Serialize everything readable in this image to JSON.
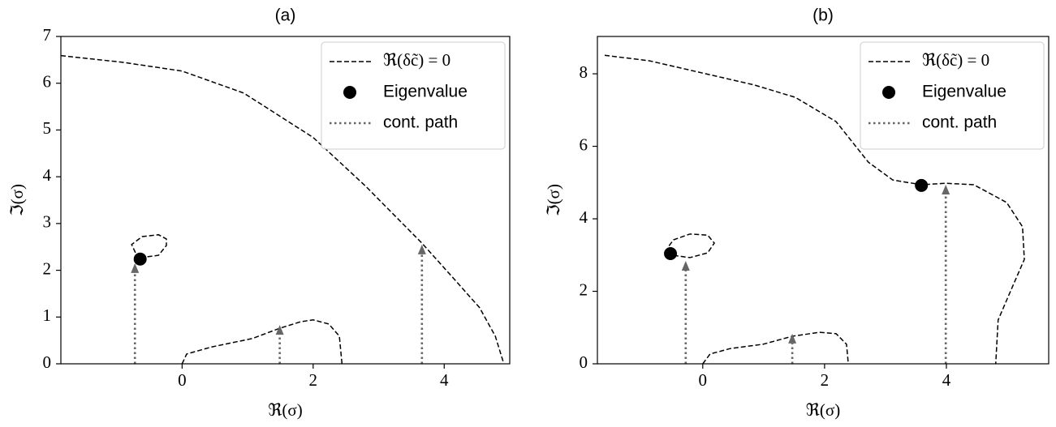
{
  "chart_data": [
    {
      "type": "line",
      "title": "(a)",
      "xlabel": "ℜ(σ)",
      "ylabel": "ℑ(σ)",
      "xlim": [
        -1.85,
        5.0
      ],
      "ylim": [
        0,
        7
      ],
      "xticks": [
        0,
        2,
        4
      ],
      "yticks": [
        0,
        1,
        2,
        3,
        4,
        5,
        6,
        7
      ],
      "legend": "upper right",
      "series": [
        {
          "name": "ℜ(δc̃) = 0",
          "color": "#000000",
          "mode": "lines",
          "dash": "dashed",
          "x": [
            -1.85,
            -0.92,
            0,
            0.94,
            2.0,
            2.8,
            3.66,
            4.16,
            4.54,
            4.78,
            4.91,
            null,
            -0.64,
            -0.36,
            -0.24,
            -0.24,
            -0.36,
            -0.61,
            -0.77,
            -0.71,
            -0.64,
            null,
            0,
            0.07,
            0.45,
            1.07,
            1.49,
            1.81,
            2.0,
            2.24,
            2.4,
            2.44
          ],
          "y": [
            6.59,
            6.45,
            6.26,
            5.79,
            4.84,
            3.8,
            2.58,
            1.8,
            1.2,
            0.59,
            0,
            null,
            2.27,
            2.32,
            2.53,
            2.67,
            2.76,
            2.72,
            2.55,
            2.37,
            2.27,
            null,
            0,
            0.21,
            0.36,
            0.54,
            0.76,
            0.9,
            0.94,
            0.85,
            0.59,
            0
          ]
        },
        {
          "name": "Eigenvalue",
          "color": "#000000",
          "mode": "markers",
          "x": [
            -0.64
          ],
          "y": [
            2.24
          ]
        },
        {
          "name": "cont. path",
          "color": "#666666",
          "mode": "arrows",
          "dash": "dotted",
          "x": [
            -0.72,
            -0.72,
            null,
            1.49,
            1.49,
            null,
            3.66,
            3.66
          ],
          "y": [
            0,
            2.15,
            null,
            0,
            0.83,
            null,
            0,
            2.55
          ]
        }
      ]
    },
    {
      "type": "line",
      "title": "(b)",
      "xlabel": "ℜ(σ)",
      "ylabel": "ℑ(σ)",
      "xlim": [
        -1.73,
        5.68
      ],
      "ylim": [
        0,
        9.03
      ],
      "xticks": [
        0,
        2,
        4
      ],
      "yticks": [
        0,
        2,
        4,
        6,
        8
      ],
      "legend": "upper right",
      "series": [
        {
          "name": "ℜ(δc̃) = 0",
          "color": "#000000",
          "mode": "lines",
          "dash": "dashed",
          "x": [
            -1.61,
            -0.88,
            0,
            0.85,
            1.52,
            2.19,
            2.72,
            3.12,
            3.59,
            3.99,
            4.45,
            4.99,
            5.25,
            5.28,
            5.05,
            4.85,
            4.81,
            null,
            -0.48,
            -0.21,
            0.08,
            0.19,
            0.08,
            -0.21,
            -0.48,
            -0.57,
            -0.48,
            null,
            0,
            0.12,
            0.45,
            0.99,
            1.47,
            1.92,
            2.19,
            2.36,
            2.39
          ],
          "y": [
            8.51,
            8.36,
            8.02,
            7.69,
            7.35,
            6.68,
            5.56,
            5.07,
            4.94,
            4.98,
            4.94,
            4.45,
            3.78,
            2.88,
            1.99,
            1.21,
            0,
            null,
            2.99,
            2.93,
            3.06,
            3.33,
            3.55,
            3.58,
            3.42,
            3.22,
            2.99,
            null,
            0,
            0.27,
            0.42,
            0.54,
            0.76,
            0.87,
            0.83,
            0.54,
            0
          ]
        },
        {
          "name": "Eigenvalue",
          "color": "#000000",
          "mode": "markers",
          "x": [
            -0.53,
            3.59
          ],
          "y": [
            3.04,
            4.92
          ]
        },
        {
          "name": "cont. path",
          "color": "#666666",
          "mode": "arrows",
          "dash": "dotted",
          "x": [
            -0.28,
            -0.28,
            null,
            1.47,
            1.47,
            null,
            3.99,
            3.99
          ],
          "y": [
            0,
            2.84,
            null,
            0,
            0.83,
            null,
            0,
            4.94
          ]
        }
      ]
    }
  ]
}
